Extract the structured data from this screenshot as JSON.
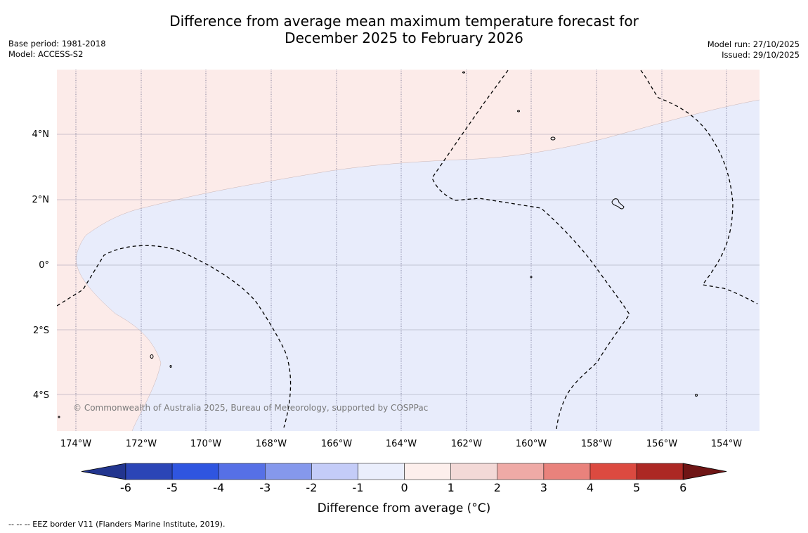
{
  "title": {
    "line1": "Difference from average mean maximum temperature forecast for",
    "line2": "December 2025 to February 2026"
  },
  "meta": {
    "base_period": "Base period: 1981-2018",
    "model": "Model: ACCESS-S2",
    "model_run": "Model run: 27/10/2025",
    "issued": "Issued: 29/10/2025"
  },
  "map": {
    "lat_labels": [
      "4°N",
      "2°N",
      "0°",
      "2°S",
      "4°S"
    ],
    "lon_labels": [
      "174°W",
      "172°W",
      "170°W",
      "168°W",
      "166°W",
      "164°W",
      "162°W",
      "160°W",
      "158°W",
      "156°W",
      "154°W"
    ],
    "copyright": "© Commonwealth of Australia 2025, Bureau of Meteorology, supported by COSPPac",
    "colors": {
      "warm_anomaly": "#fcebe9",
      "cool_anomaly": "#e8ecfb",
      "gridline": "#9a9aac"
    }
  },
  "colorbar": {
    "label": "Difference from average (°C)",
    "ticks": [
      "-6",
      "-5",
      "-4",
      "-3",
      "-2",
      "-1",
      "0",
      "1",
      "2",
      "3",
      "4",
      "5",
      "6"
    ],
    "colors": [
      "#22358f",
      "#2b45b6",
      "#2f55e0",
      "#5670e6",
      "#8598ec",
      "#c4ccf8",
      "#eaeefc",
      "#fdefec",
      "#f3d9d7",
      "#efaaa6",
      "#e9827c",
      "#dc4a40",
      "#ac2824",
      "#6f1515"
    ]
  },
  "footnote": "--  --  -- EEZ border V11 (Flanders Marine Institute, 2019)."
}
